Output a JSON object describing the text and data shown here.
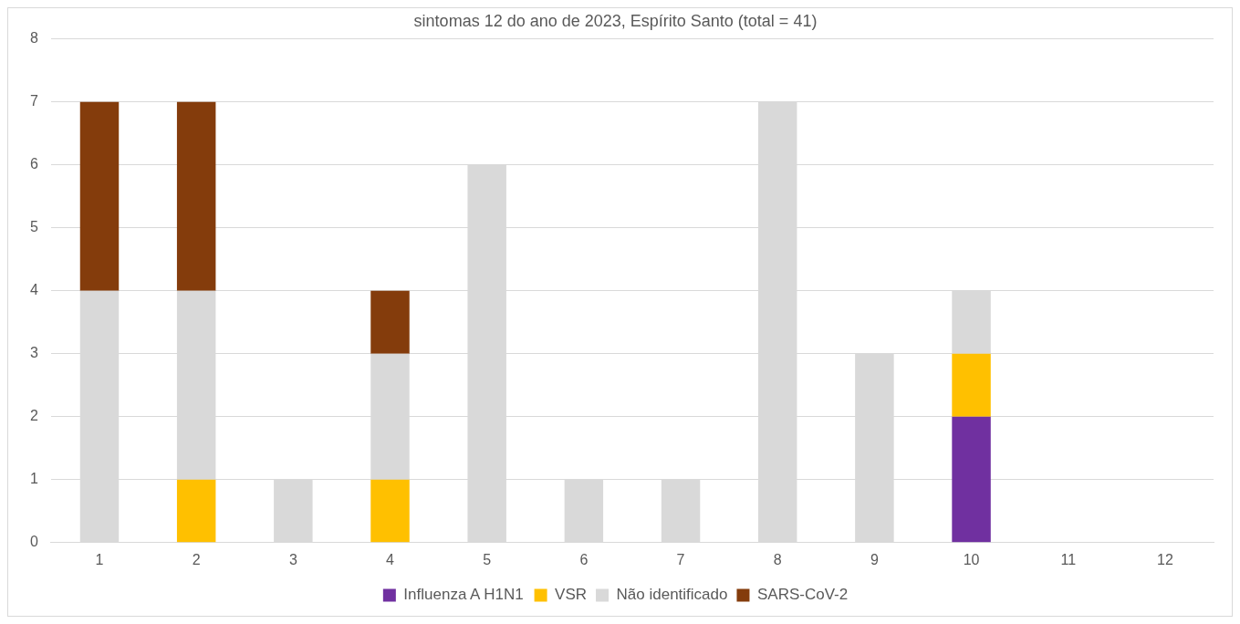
{
  "chart_data": {
    "type": "bar",
    "title": "sintomas 12 do ano de 2023, Espírito Santo (total = 41)",
    "categories": [
      "1",
      "2",
      "3",
      "4",
      "5",
      "6",
      "7",
      "8",
      "9",
      "10",
      "11",
      "12"
    ],
    "stacked": true,
    "series": [
      {
        "name": "Influenza A H1N1",
        "color": "#7030a0",
        "values": [
          0,
          0,
          0,
          0,
          0,
          0,
          0,
          0,
          0,
          2,
          0,
          0
        ]
      },
      {
        "name": "VSR",
        "color": "#ffc000",
        "values": [
          0,
          1,
          0,
          1,
          0,
          0,
          0,
          0,
          0,
          1,
          0,
          0
        ]
      },
      {
        "name": "Não identificado",
        "color": "#d9d9d9",
        "values": [
          4,
          3,
          1,
          2,
          6,
          1,
          1,
          7,
          3,
          1,
          0,
          0
        ]
      },
      {
        "name": "SARS-CoV-2",
        "color": "#843c0c",
        "values": [
          3,
          3,
          0,
          1,
          0,
          0,
          0,
          0,
          0,
          0,
          0,
          0
        ]
      }
    ],
    "ylim": [
      0,
      8
    ],
    "yticks": [
      0,
      1,
      2,
      3,
      4,
      5,
      6,
      7,
      8
    ],
    "grid": "y",
    "legend": "bottom"
  }
}
